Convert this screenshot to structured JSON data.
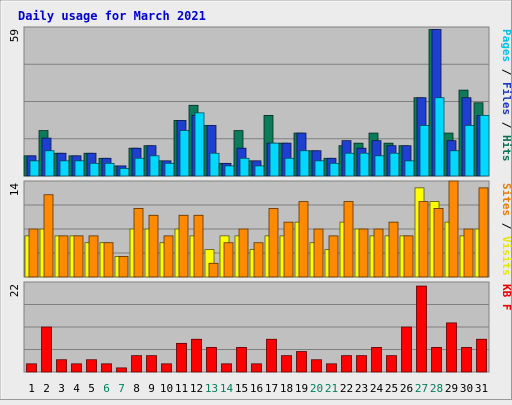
{
  "chart_data": [
    {
      "type": "bar",
      "title": "Daily usage for March 2021",
      "ymax_label": "59",
      "ylim": [
        0,
        59
      ],
      "label_words": [
        "Pages",
        "Files",
        "Hits"
      ],
      "label_sep": " / ",
      "categories": [
        "1",
        "2",
        "3",
        "4",
        "5",
        "6",
        "7",
        "8",
        "9",
        "10",
        "11",
        "12",
        "13",
        "14",
        "15",
        "16",
        "17",
        "18",
        "19",
        "20",
        "21",
        "22",
        "23",
        "24",
        "25",
        "26",
        "27",
        "28",
        "29",
        "30",
        "31"
      ],
      "weekend_days": [
        "6",
        "7",
        "13",
        "14",
        "20",
        "21",
        "27",
        "28"
      ],
      "series": [
        {
          "name": "Hits",
          "color": "#0d7a5a",
          "values": [
            8,
            18,
            9,
            8,
            9,
            7,
            4,
            11,
            12,
            6,
            22,
            28,
            20,
            5,
            18,
            6,
            24,
            13,
            17,
            10,
            7,
            12,
            13,
            17,
            13,
            12,
            31,
            58,
            17,
            34,
            29
          ]
        },
        {
          "name": "Files",
          "color": "#1f3fd0",
          "values": [
            8,
            15,
            9,
            8,
            9,
            7,
            4,
            11,
            12,
            6,
            22,
            24,
            20,
            5,
            11,
            6,
            13,
            13,
            17,
            10,
            7,
            14,
            11,
            14,
            12,
            12,
            31,
            58,
            14,
            31,
            24
          ]
        },
        {
          "name": "Pages",
          "color": "#00d8ff",
          "values": [
            6,
            10,
            6,
            6,
            5,
            5,
            3,
            7,
            8,
            5,
            18,
            25,
            9,
            4,
            7,
            4,
            13,
            7,
            10,
            6,
            5,
            9,
            9,
            8,
            9,
            6,
            20,
            31,
            10,
            20,
            24
          ]
        }
      ]
    },
    {
      "type": "bar",
      "ymax_label": "14",
      "ylim": [
        0,
        14
      ],
      "label_words": [
        "Sites",
        "Visits"
      ],
      "label_sep": " / ",
      "categories": [
        "1",
        "2",
        "3",
        "4",
        "5",
        "6",
        "7",
        "8",
        "9",
        "10",
        "11",
        "12",
        "13",
        "14",
        "15",
        "16",
        "17",
        "18",
        "19",
        "20",
        "21",
        "22",
        "23",
        "24",
        "25",
        "26",
        "27",
        "28",
        "29",
        "30",
        "31"
      ],
      "series": [
        {
          "name": "Visits",
          "color": "#ffff00",
          "values": [
            6,
            7,
            6,
            6,
            5,
            5,
            3,
            7,
            7,
            5,
            7,
            6,
            4,
            6,
            6,
            4,
            6,
            6,
            8,
            5,
            4,
            8,
            7,
            6,
            6,
            6,
            13,
            11,
            8,
            6,
            7
          ]
        },
        {
          "name": "Sites",
          "color": "#ff8a00",
          "values": [
            7,
            12,
            6,
            6,
            6,
            5,
            3,
            10,
            9,
            6,
            9,
            9,
            2,
            5,
            7,
            5,
            10,
            8,
            11,
            7,
            6,
            11,
            7,
            7,
            8,
            6,
            11,
            10,
            14,
            7,
            13
          ]
        }
      ]
    },
    {
      "type": "bar",
      "ymax_label": "22",
      "ylim": [
        0,
        22
      ],
      "label_words": [
        "KB F"
      ],
      "label_sep": "",
      "categories": [
        "1",
        "2",
        "3",
        "4",
        "5",
        "6",
        "7",
        "8",
        "9",
        "10",
        "11",
        "12",
        "13",
        "14",
        "15",
        "16",
        "17",
        "18",
        "19",
        "20",
        "21",
        "22",
        "23",
        "24",
        "25",
        "26",
        "27",
        "28",
        "29",
        "30",
        "31"
      ],
      "series": [
        {
          "name": "KB F",
          "color": "#ff0000",
          "values": [
            2,
            11,
            3,
            2,
            3,
            2,
            1,
            4,
            4,
            2,
            7,
            8,
            6,
            2,
            6,
            2,
            8,
            4,
            5,
            3,
            2,
            4,
            4,
            6,
            4,
            11,
            21,
            6,
            12,
            6,
            8
          ]
        }
      ]
    }
  ],
  "colors": {
    "plot_bg": "#c0c0c0",
    "page_bg": "#ececec",
    "title": "#0000cc",
    "weekday_label": "#000000",
    "weekend_label": "#00805a",
    "gridline": "#808080"
  }
}
